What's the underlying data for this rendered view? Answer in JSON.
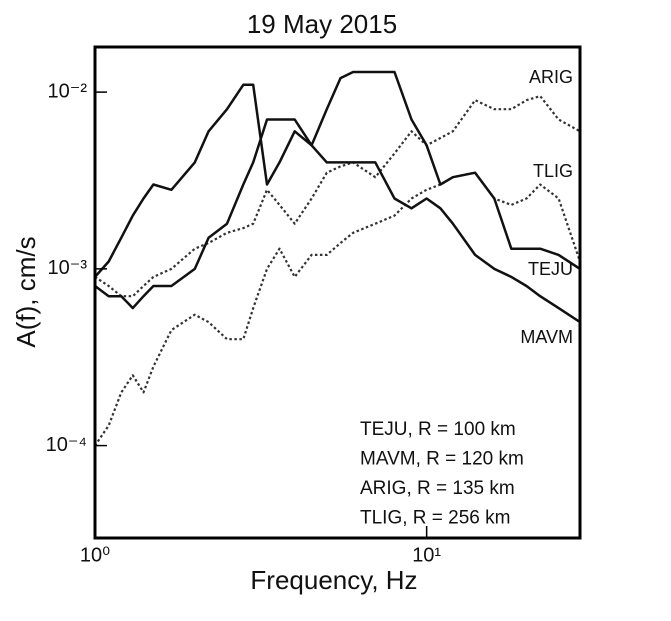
{
  "chart_data": {
    "type": "line",
    "title": "19 May 2015",
    "xlabel": "Frequency, Hz",
    "ylabel": "A(f), cm/s",
    "log_x": true,
    "log_y": true,
    "grid": false,
    "xlim": [
      1,
      29
    ],
    "ylim": [
      3e-05,
      0.018
    ],
    "xticks": [
      {
        "value": 1,
        "label": "10⁰"
      },
      {
        "value": 10,
        "label": "10¹"
      }
    ],
    "yticks": [
      {
        "value": 0.0001,
        "label": "10⁻⁴"
      },
      {
        "value": 0.001,
        "label": "10⁻³"
      },
      {
        "value": 0.01,
        "label": "10⁻²"
      }
    ],
    "x": [
      1,
      1.1,
      1.2,
      1.3,
      1.4,
      1.5,
      1.7,
      2,
      2.2,
      2.5,
      2.8,
      3,
      3.3,
      3.6,
      4,
      4.5,
      5,
      5.5,
      6,
      7,
      8,
      9,
      10,
      11,
      12,
      14,
      16,
      18,
      20,
      22,
      25,
      29
    ],
    "series": [
      {
        "name": "ARIG",
        "color": "#333333",
        "dash": "dotted",
        "values": [
          0.0009,
          0.0008,
          0.0007,
          0.0007,
          0.0008,
          0.0009,
          0.001,
          0.0013,
          0.0014,
          0.0016,
          0.0017,
          0.0018,
          0.0028,
          0.0023,
          0.0018,
          0.0025,
          0.0035,
          0.0038,
          0.004,
          0.0033,
          0.0045,
          0.006,
          0.005,
          0.0055,
          0.006,
          0.009,
          0.008,
          0.008,
          0.009,
          0.0095,
          0.007,
          0.006
        ]
      },
      {
        "name": "TLIG",
        "color": "#333333",
        "dash": "dotted",
        "values": [
          0.0001,
          0.00013,
          0.0002,
          0.00025,
          0.0002,
          0.00028,
          0.00045,
          0.00055,
          0.0005,
          0.0004,
          0.0004,
          0.0006,
          0.001,
          0.0013,
          0.0009,
          0.0012,
          0.0012,
          0.0014,
          0.0016,
          0.0018,
          0.002,
          0.0025,
          0.0028,
          0.003,
          0.0033,
          0.0035,
          0.0025,
          0.0023,
          0.0025,
          0.003,
          0.0025,
          0.0011
        ]
      },
      {
        "name": "TEJU",
        "color": "#111111",
        "dash": "solid",
        "values": [
          0.0008,
          0.0007,
          0.0007,
          0.0006,
          0.0007,
          0.0008,
          0.0008,
          0.001,
          0.0015,
          0.0018,
          0.003,
          0.004,
          0.007,
          0.007,
          0.007,
          0.005,
          0.008,
          0.012,
          0.013,
          0.013,
          0.013,
          0.007,
          0.005,
          0.003,
          0.0033,
          0.0035,
          0.0025,
          0.0013,
          0.0013,
          0.0013,
          0.0012,
          0.001
        ]
      },
      {
        "name": "MAVM",
        "color": "#111111",
        "dash": "solid",
        "values": [
          0.0009,
          0.0011,
          0.0015,
          0.002,
          0.0025,
          0.003,
          0.0028,
          0.004,
          0.006,
          0.008,
          0.011,
          0.011,
          0.003,
          0.004,
          0.006,
          0.005,
          0.004,
          0.004,
          0.004,
          0.004,
          0.0025,
          0.0022,
          0.0025,
          0.0022,
          0.0018,
          0.0012,
          0.001,
          0.0009,
          0.0008,
          0.0007,
          0.0006,
          0.0005
        ]
      }
    ],
    "legend_text": [
      "TEJU, R = 100 km",
      "MAVM, R = 120 km",
      "ARIG, R = 135 km",
      "TLIG, R = 256 km"
    ]
  }
}
